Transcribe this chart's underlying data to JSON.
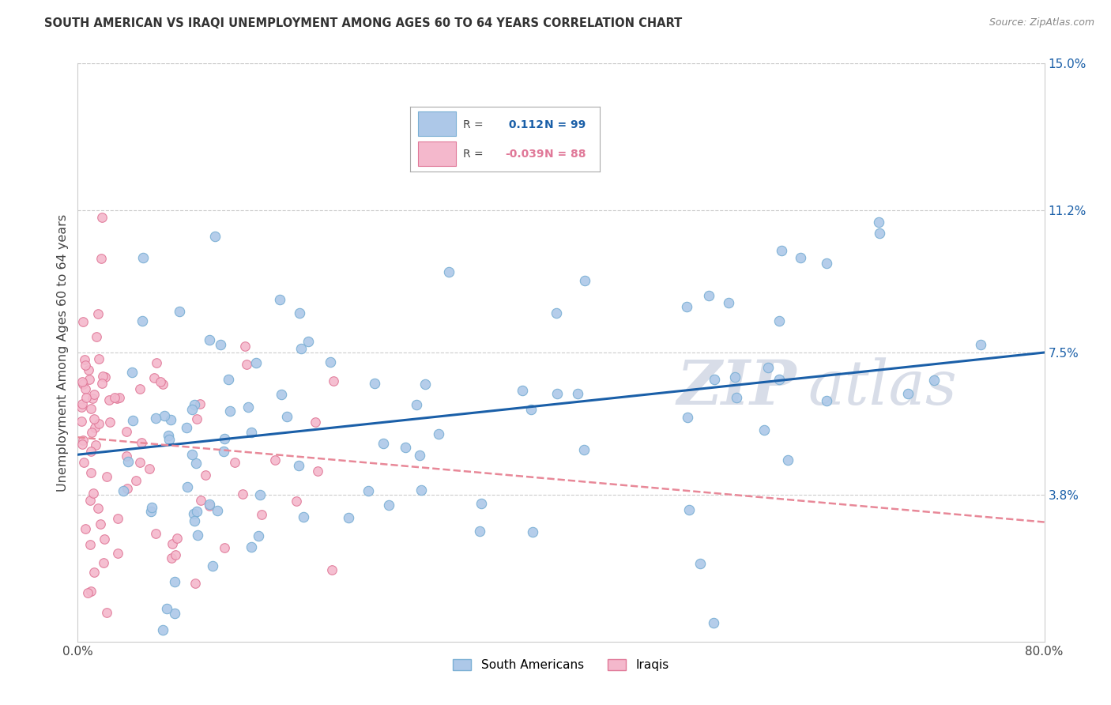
{
  "title": "SOUTH AMERICAN VS IRAQI UNEMPLOYMENT AMONG AGES 60 TO 64 YEARS CORRELATION CHART",
  "source": "Source: ZipAtlas.com",
  "ylabel": "Unemployment Among Ages 60 to 64 years",
  "right_yticks": [
    3.8,
    7.5,
    11.2,
    15.0
  ],
  "right_ytick_labels": [
    "3.8%",
    "7.5%",
    "11.2%",
    "15.0%"
  ],
  "blue_label": "South Americans",
  "pink_label": "Iraqis",
  "blue_R": 0.112,
  "blue_N": 99,
  "pink_R": -0.039,
  "pink_N": 88,
  "blue_color": "#adc8e8",
  "blue_edge_color": "#7aafd4",
  "pink_color": "#f4b8cc",
  "pink_edge_color": "#e07898",
  "blue_line_color": "#1a5fa8",
  "pink_line_color": "#e88898",
  "watermark_color": "#d8dde8",
  "bg_color": "#ffffff",
  "grid_color": "#cccccc",
  "xmin": 0.0,
  "xmax": 80.0,
  "ymin": 0.0,
  "ymax": 15.0,
  "blue_trend_x0": 0.0,
  "blue_trend_y0": 4.85,
  "blue_trend_x1": 80.0,
  "blue_trend_y1": 7.5,
  "pink_trend_x0": 0.0,
  "pink_trend_y0": 5.3,
  "pink_trend_x1": 80.0,
  "pink_trend_y1": 3.1
}
